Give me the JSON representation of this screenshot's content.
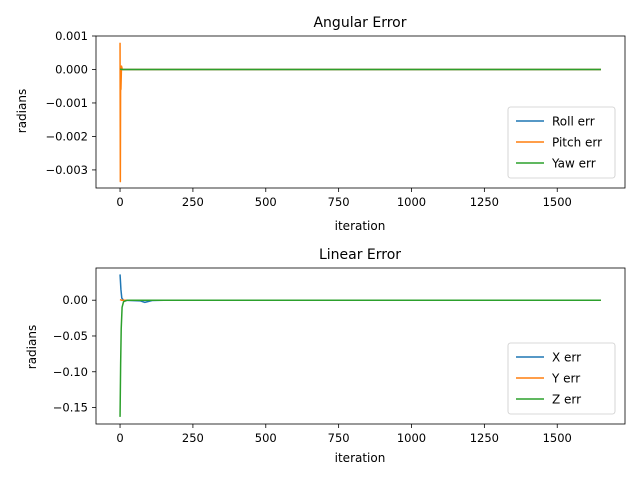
{
  "chart_data": [
    {
      "type": "line",
      "title": "Angular Error",
      "xlabel": "iteration",
      "ylabel": "radians",
      "xlim": [
        -82.5,
        1732.5
      ],
      "ylim": [
        -0.00354,
        0.001
      ],
      "xticks": [
        0,
        250,
        500,
        750,
        1000,
        1250,
        1500
      ],
      "yticks": [
        -0.003,
        -0.002,
        -0.001,
        0.0,
        0.001
      ],
      "ytick_labels": [
        "−0.003",
        "−0.002",
        "−0.001",
        "0.000",
        "0.001"
      ],
      "grid": false,
      "legend": "lower-right",
      "series": [
        {
          "name": "Roll err",
          "color": "#1f77b4",
          "points": [
            [
              0,
              0
            ],
            [
              2,
              -2e-05
            ],
            [
              4,
              1e-05
            ],
            [
              10,
              0
            ],
            [
              1650,
              0
            ]
          ]
        },
        {
          "name": "Pitch err",
          "color": "#ff7f0e",
          "points": [
            [
              0,
              0.0008
            ],
            [
              1,
              -0.00335
            ],
            [
              2,
              -0.0001
            ],
            [
              3,
              -0.0006
            ],
            [
              5,
              0.0001
            ],
            [
              8,
              0
            ],
            [
              1650,
              0
            ]
          ]
        },
        {
          "name": "Yaw err",
          "color": "#2ca02c",
          "points": [
            [
              0,
              0
            ],
            [
              3,
              1e-05
            ],
            [
              6,
              0
            ],
            [
              1650,
              0
            ]
          ]
        }
      ]
    },
    {
      "type": "line",
      "title": "Linear Error",
      "xlabel": "iteration",
      "ylabel": "radians",
      "xlim": [
        -82.5,
        1732.5
      ],
      "ylim": [
        -0.173,
        0.045
      ],
      "xticks": [
        0,
        250,
        500,
        750,
        1000,
        1250,
        1500
      ],
      "yticks": [
        -0.15,
        -0.1,
        -0.05,
        0.0
      ],
      "ytick_labels": [
        "−0.15",
        "−0.10",
        "−0.05",
        "0.00"
      ],
      "grid": false,
      "legend": "lower-right",
      "series": [
        {
          "name": "X err",
          "color": "#1f77b4",
          "points": [
            [
              0,
              0.036
            ],
            [
              3,
              0.015
            ],
            [
              6,
              0.003
            ],
            [
              12,
              0
            ],
            [
              70,
              -0.001
            ],
            [
              85,
              -0.003
            ],
            [
              95,
              -0.002
            ],
            [
              110,
              -0.0005
            ],
            [
              150,
              0
            ],
            [
              1650,
              0
            ]
          ]
        },
        {
          "name": "Y err",
          "color": "#ff7f0e",
          "points": [
            [
              0,
              0.001
            ],
            [
              5,
              0
            ],
            [
              1650,
              0
            ]
          ]
        },
        {
          "name": "Z err",
          "color": "#2ca02c",
          "points": [
            [
              0,
              -0.163
            ],
            [
              2,
              -0.09
            ],
            [
              4,
              -0.04
            ],
            [
              7,
              -0.01
            ],
            [
              12,
              -0.002
            ],
            [
              25,
              0
            ],
            [
              1650,
              0
            ]
          ]
        }
      ]
    }
  ]
}
